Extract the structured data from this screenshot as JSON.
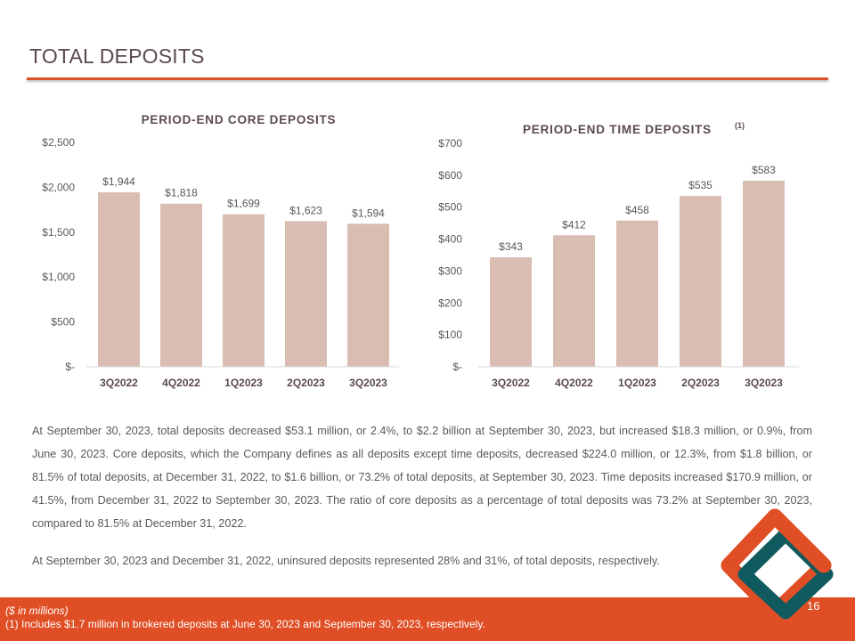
{
  "header": {
    "title": "TOTAL DEPOSITS"
  },
  "chart_data": [
    {
      "type": "bar",
      "title": "PERIOD-END CORE DEPOSITS",
      "categories": [
        "3Q2022",
        "4Q2022",
        "1Q2023",
        "2Q2023",
        "3Q2023"
      ],
      "values": [
        1944,
        1818,
        1699,
        1623,
        1594
      ],
      "data_labels": [
        "$1,944",
        "$1,818",
        "$1,699",
        "$1,623",
        "$1,594"
      ],
      "yticks": [
        0,
        500,
        1000,
        1500,
        2000,
        2500
      ],
      "ytick_labels": [
        "$-",
        "$500",
        "$1,000",
        "$1,500",
        "$2,000",
        "$2,500"
      ],
      "ylim": [
        0,
        2500
      ],
      "grid": false,
      "bar_color": "#d9bdb2"
    },
    {
      "type": "bar",
      "title": "PERIOD-END TIME DEPOSITS",
      "title_superscript": "(1)",
      "categories": [
        "3Q2022",
        "4Q2022",
        "1Q2023",
        "2Q2023",
        "3Q2023"
      ],
      "values": [
        343,
        412,
        458,
        535,
        583
      ],
      "data_labels": [
        "$343",
        "$412",
        "$458",
        "$535",
        "$583"
      ],
      "yticks": [
        0,
        100,
        200,
        300,
        400,
        500,
        600,
        700
      ],
      "ytick_labels": [
        "$-",
        "$100",
        "$200",
        "$300",
        "$400",
        "$500",
        "$600",
        "$700"
      ],
      "ylim": [
        0,
        700
      ],
      "grid": false,
      "bar_color": "#d9bdb2"
    }
  ],
  "body": {
    "paragraph1": "At September 30, 2023, total deposits decreased $53.1 million, or 2.4%, to $2.2 billion at September 30, 2023, but increased $18.3 million, or 0.9%, from June 30, 2023. Core deposits, which the Company defines as all deposits except time deposits, decreased $224.0 million, or 12.3%, from $1.8 billion, or 81.5% of total deposits, at December 31, 2022, to $1.6 billion, or 73.2% of total deposits, at September 30, 2023. Time deposits increased $170.9 million, or 41.5%, from December 31, 2022 to September 30, 2023. The ratio of core deposits as a percentage of total deposits was 73.2% at September 30, 2023, compared to 81.5% at December 31, 2022.",
    "paragraph2": "At September 30, 2023 and December 31, 2022, uninsured deposits represented 28% and 31%, of total deposits, respectively."
  },
  "footer": {
    "units_note": "($ in millions)",
    "footnote": "(1) Includes $1.7 million in brokered deposits at June 30, 2023 and September 30, 2023, respectively.",
    "page_number": "16"
  },
  "colors": {
    "accent": "#e04e25",
    "rule": "#d9532a",
    "logo_orange": "#e04e25",
    "logo_teal": "#0f5a5e"
  },
  "logo": {
    "icon": "diamond-logo-icon"
  }
}
